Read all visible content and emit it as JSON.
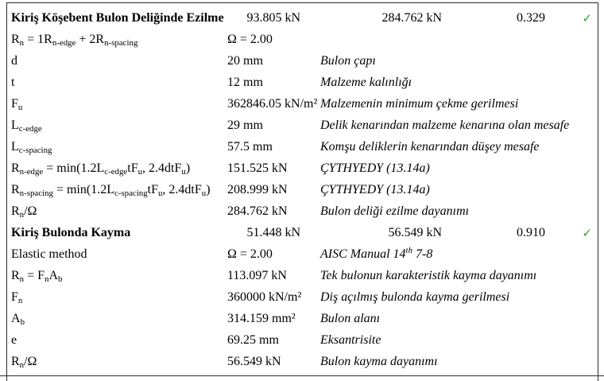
{
  "report": {
    "border_color": "#2b2b2b",
    "check_icon": {
      "glyph": "✓",
      "color": "#2fa32f"
    },
    "sections": [
      {
        "title": "Kiriş Köşebent Bulon Deliğinde Ezilme",
        "demand": "93.805 kN",
        "capacity": "284.762 kN",
        "ratio": "0.329",
        "status": "pass",
        "rows": [
          {
            "label": [
              {
                "t": "R"
              },
              {
                "sub": "n"
              },
              {
                "t": " = 1R"
              },
              {
                "sub": "n-edge"
              },
              {
                "t": " + 2R"
              },
              {
                "sub": "n-spacing"
              }
            ],
            "value": "Ω = 2.00",
            "desc": ""
          },
          {
            "label": "d",
            "value": "20 mm",
            "desc": "Bulon çapı"
          },
          {
            "label": "t",
            "value": "12 mm",
            "desc": "Malzeme kalınlığı"
          },
          {
            "label": [
              {
                "t": "F"
              },
              {
                "sub": "u"
              }
            ],
            "value": "362846.05 kN/m²",
            "desc": "Malzemenin minimum çekme gerilmesi"
          },
          {
            "label": [
              {
                "t": "L"
              },
              {
                "sub": "c-edge"
              }
            ],
            "value": "29 mm",
            "desc": "Delik kenarından malzeme kenarına olan mesafe"
          },
          {
            "label": [
              {
                "t": "L"
              },
              {
                "sub": "c-spacing"
              }
            ],
            "value": "57.5 mm",
            "desc": "Komşu deliklerin kenarından düşey mesafe"
          },
          {
            "label": [
              {
                "t": "R"
              },
              {
                "sub": "n-edge"
              },
              {
                "t": " = min(1.2L"
              },
              {
                "sub": "c-edge"
              },
              {
                "t": "tF"
              },
              {
                "sub": "u"
              },
              {
                "t": ", 2.4dtF"
              },
              {
                "sub": "u"
              },
              {
                "t": ")"
              }
            ],
            "value": "151.525 kN",
            "desc": "ÇYTHYEDY (13.14a)"
          },
          {
            "label": [
              {
                "t": "R"
              },
              {
                "sub": "n-spacing"
              },
              {
                "t": " = min(1.2L"
              },
              {
                "sub": "c-spacing"
              },
              {
                "t": "tF"
              },
              {
                "sub": "u"
              },
              {
                "t": ", 2.4dtF"
              },
              {
                "sub": "u"
              },
              {
                "t": ")"
              }
            ],
            "value": "208.999 kN",
            "desc": "ÇYTHYEDY (13.14a)"
          },
          {
            "label": [
              {
                "t": "R"
              },
              {
                "sub": "n"
              },
              {
                "t": "/Ω"
              }
            ],
            "value": "284.762 kN",
            "desc": "Bulon deliği ezilme dayanımı"
          }
        ]
      },
      {
        "title": "Kiriş Bulonda Kayma",
        "demand": "51.448 kN",
        "capacity": "56.549 kN",
        "ratio": "0.910",
        "status": "pass",
        "rows": [
          {
            "label": "Elastic method",
            "value": "Ω = 2.00",
            "desc": [
              {
                "t": "AISC Manual 14"
              },
              {
                "sup": "th"
              },
              {
                "t": " 7-8"
              }
            ]
          },
          {
            "label": [
              {
                "t": "R"
              },
              {
                "sub": "n"
              },
              {
                "t": " = F"
              },
              {
                "sub": "n"
              },
              {
                "t": "A"
              },
              {
                "sub": "b"
              }
            ],
            "value": "113.097 kN",
            "desc": "Tek bulonun karakteristik kayma dayanımı"
          },
          {
            "label": [
              {
                "t": "F"
              },
              {
                "sub": "n"
              }
            ],
            "value": "360000 kN/m²",
            "desc": "Diş açılmış bulonda kayma gerilmesi"
          },
          {
            "label": [
              {
                "t": "A"
              },
              {
                "sub": "b"
              }
            ],
            "value": "314.159 mm²",
            "desc": "Bulon alanı"
          },
          {
            "label": "e",
            "value": "69.25 mm",
            "desc": "Eksantrisite"
          },
          {
            "label": [
              {
                "t": "R"
              },
              {
                "sub": "n"
              },
              {
                "t": "/Ω"
              }
            ],
            "value": "56.549 kN",
            "desc": "Bulon kayma dayanımı"
          }
        ]
      }
    ]
  }
}
